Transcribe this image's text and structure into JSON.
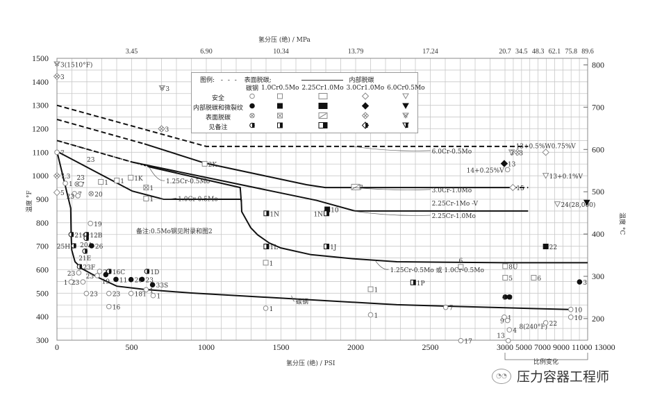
{
  "chart_data": {
    "type": "line",
    "xlabel_bottom": "氢分压 (绝) / PSI",
    "xlabel_top": "氢分压 (绝) / MPa",
    "ylabel_left": "温度 °F",
    "ylabel_right": "温度 °C",
    "x_ticks": [
      0,
      500,
      1000,
      1500,
      2000,
      2500,
      3000,
      5000,
      7000,
      9000,
      11000,
      13000
    ],
    "x_scale_note": "比例变化",
    "x_scale_change_at": 3000,
    "top_ticks": [
      {
        "psi": 500,
        "label": "3.45"
      },
      {
        "psi": 1000,
        "label": "6.90"
      },
      {
        "psi": 1500,
        "label": "10.34"
      },
      {
        "psi": 2000,
        "label": "13.79"
      },
      {
        "psi": 2500,
        "label": "17.24"
      },
      {
        "psi": 3000,
        "label": "20.7"
      },
      {
        "psi": 5000,
        "label": "34.5"
      },
      {
        "psi": 7000,
        "label": "48.3"
      },
      {
        "psi": 9000,
        "label": "62.1"
      },
      {
        "psi": 11000,
        "label": "75.8"
      },
      {
        "psi": 13000,
        "label": "89.6"
      }
    ],
    "y_ticks_left": [
      300,
      400,
      500,
      600,
      700,
      800,
      900,
      1000,
      1100,
      1200,
      1300,
      1400,
      1500
    ],
    "y_ticks_right": [
      200,
      300,
      400,
      500,
      600,
      700,
      800
    ],
    "xlim": [
      0,
      13000
    ],
    "ylim": [
      300,
      1500
    ],
    "grid": true,
    "series": [
      {
        "name": "6.0Cr-0.5Mo",
        "segments": [
          {
            "style": "dashed",
            "points": [
              [
                0,
                1300
              ],
              [
                1000,
                1125
              ],
              [
                5800,
                1125
              ]
            ]
          }
        ]
      },
      {
        "name": "3.0Cr-1.0Mo",
        "segments": [
          {
            "style": "dashed",
            "points": [
              [
                0,
                1240
              ],
              [
                585,
                1136
              ]
            ]
          },
          {
            "style": "solid",
            "points": [
              [
                585,
                1136
              ],
              [
                990,
                1054
              ],
              [
                1670,
                962
              ],
              [
                1796,
                950
              ],
              [
                3840,
                950
              ]
            ]
          },
          {
            "style": "dashed",
            "points": [
              [
                3840,
                950
              ],
              [
                5800,
                950
              ]
            ]
          }
        ]
      },
      {
        "name": "2.25Cr-1.0Mo",
        "segments": [
          {
            "style": "dashed",
            "points": [
              [
                0,
                1150
              ],
              [
                504,
                1058
              ]
            ]
          },
          {
            "style": "solid",
            "points": [
              [
                504,
                1058
              ],
              [
                1740,
                895
              ],
              [
                1996,
                850
              ],
              [
                5800,
                850
              ]
            ]
          }
        ]
      },
      {
        "name": "1.25Cr-0.5Mo",
        "segments": [
          {
            "style": "dotted",
            "points": [
              [
                0,
                1150
              ],
              [
                611,
                1039
              ]
            ]
          },
          {
            "style": "solid",
            "points": [
              [
                611,
                1039
              ],
              [
                1227,
                950
              ],
              [
                1234,
                891
              ]
            ]
          }
        ]
      },
      {
        "name": "1.0Cr-0.5Mo",
        "segments": [
          {
            "style": "solid",
            "points": [
              [
                0,
                1104
              ],
              [
                504,
                935
              ],
              [
                714,
                900
              ],
              [
                1234,
                900
              ]
            ]
          }
        ]
      },
      {
        "name": "1.25Cr-0.5Mo 或 1.0Cr-0.5Mo",
        "segments": [
          {
            "style": "solid",
            "points": [
              [
                1234,
                900
              ],
              [
                1237,
                847
              ],
              [
                1297,
                779
              ],
              [
                1343,
                749
              ],
              [
                1421,
                714
              ],
              [
                1497,
                693
              ],
              [
                1701,
                664
              ],
              [
                1996,
                646
              ],
              [
                2276,
                634
              ],
              [
                3000,
                630
              ],
              [
                13000,
                630
              ]
            ]
          }
        ]
      },
      {
        "name": "碳钢",
        "segments": [
          {
            "style": "solid",
            "points": [
              [
                0,
                1104
              ],
              [
                92,
                862
              ],
              [
                95,
                752
              ],
              [
                99,
                684
              ],
              [
                121,
                634
              ],
              [
                168,
                604
              ],
              [
                280,
                566
              ],
              [
                401,
                530
              ],
              [
                588,
                516
              ],
              [
                900,
                501
              ],
              [
                2276,
                451
              ],
              [
                3000,
                438
              ],
              [
                10800,
                431
              ]
            ]
          }
        ]
      }
    ],
    "curve_labels": [
      {
        "text": "6.0Cr-0.5Mo",
        "at": [
          2510,
          1095
        ],
        "arrow": [
          1980,
          1125
        ]
      },
      {
        "text": "3.0Cr-1.0Mo",
        "at": [
          2510,
          930
        ],
        "arrow": [
          1980,
          950
        ]
      },
      {
        "text": "2.25Cr-1Mo -V",
        "at": [
          2510,
          873
        ]
      },
      {
        "text": "2.25Cr-1.0Mo",
        "at": [
          2510,
          820
        ],
        "arrow": [
          1980,
          850
        ]
      },
      {
        "text": "1.25Cr-0.5Mo",
        "at": [
          730,
          968
        ],
        "arrow": [
          620,
          1034
        ]
      },
      {
        "text": "1.0Cr-0.5Mo",
        "at": [
          810,
          893
        ],
        "arrow": [
          690,
          903
        ]
      },
      {
        "text": "1.25Cr-0.5Mo 或 1.0Cr-0.5Mo",
        "at": [
          2230,
          590
        ],
        "arrow": [
          2130,
          640
        ]
      },
      {
        "text": "碳钢",
        "at": [
          1600,
          455
        ],
        "arrow": [
          1570,
          490
        ]
      }
    ],
    "note": "备注:0.5Mo钢见附录和图2",
    "points": [
      {
        "psi": 0,
        "F": 1475,
        "m": "tri",
        "s": "x",
        "label": "3(1510°F)"
      },
      {
        "psi": 0,
        "F": 1423,
        "m": "diamond",
        "s": "x",
        "label": "3"
      },
      {
        "psi": 704,
        "F": 1373,
        "m": "tri",
        "s": "x",
        "label": "3"
      },
      {
        "psi": 700,
        "F": 1200,
        "m": "diamond",
        "s": "x",
        "label": "3"
      },
      {
        "psi": 989,
        "F": 1051,
        "m": "square",
        "s": "open",
        "label": "2K"
      },
      {
        "psi": 494,
        "F": 992,
        "m": "square",
        "s": "open",
        "label": "1K"
      },
      {
        "psi": 294,
        "F": 974,
        "m": "square",
        "s": "open",
        "label": "1"
      },
      {
        "psi": 401,
        "F": 980,
        "m": "square",
        "s": "open",
        "label": "1"
      },
      {
        "psi": 597,
        "F": 950,
        "m": "square",
        "s": "x",
        "label": "1"
      },
      {
        "psi": 597,
        "F": 903,
        "m": "square",
        "s": "open",
        "label": "1"
      },
      {
        "psi": 0,
        "F": 1100,
        "m": "circle",
        "s": "open",
        "label": "7"
      },
      {
        "psi": 177,
        "F": 1071,
        "m": "circle",
        "s": "none",
        "label": "23"
      },
      {
        "psi": 0,
        "F": 1000,
        "m": "diamond",
        "s": "x",
        "label": "7.3"
      },
      {
        "psi": 0,
        "F": 929,
        "m": "diamond",
        "s": "open",
        "label": "5"
      },
      {
        "psi": 56,
        "F": 968,
        "m": "circle",
        "s": "open",
        "label": "1"
      },
      {
        "psi": 135,
        "F": 965,
        "m": "circle",
        "s": "x",
        "label": "7"
      },
      {
        "psi": 159,
        "F": 965,
        "m": "circle",
        "s": "open",
        "label": "23"
      },
      {
        "psi": 117,
        "F": 924,
        "m": "circle",
        "s": "open",
        "label": "7"
      },
      {
        "psi": 140,
        "F": 915,
        "m": "circle",
        "s": "open",
        "label": "23"
      },
      {
        "psi": 229,
        "F": 924,
        "m": "circle",
        "s": "x",
        "label": "20"
      },
      {
        "psi": 224,
        "F": 797,
        "m": "circle",
        "s": "open",
        "label": "19"
      },
      {
        "psi": 95,
        "F": 750,
        "m": "circle",
        "s": "half",
        "label": "21G"
      },
      {
        "psi": 197,
        "F": 750,
        "m": "circle",
        "s": "half",
        "label": "12B"
      },
      {
        "psi": 196,
        "F": 734,
        "m": "circle",
        "s": "half",
        "label": "20A"
      },
      {
        "psi": 112,
        "F": 702,
        "m": "circle",
        "s": "half",
        "label": "25H"
      },
      {
        "psi": 232,
        "F": 702,
        "m": "circle",
        "s": "filled",
        "label": "26"
      },
      {
        "psi": 187,
        "F": 679,
        "m": "circle",
        "s": "half",
        "label": "21E"
      },
      {
        "psi": 151,
        "F": 613,
        "m": "circle",
        "s": "half",
        "label": "23F"
      },
      {
        "psi": 286,
        "F": 593,
        "m": "circle",
        "s": "open",
        "label": "23"
      },
      {
        "psi": 146,
        "F": 587,
        "m": "circle",
        "s": "open",
        "label": "23"
      },
      {
        "psi": 348,
        "F": 593,
        "m": "circle",
        "s": "half",
        "label": "16C"
      },
      {
        "psi": 327,
        "F": 579,
        "m": "circle",
        "s": "filled",
        "label": "19"
      },
      {
        "psi": 395,
        "F": 559,
        "m": "circle",
        "s": "filled",
        "label": "11"
      },
      {
        "psi": 496,
        "F": 558,
        "m": "circle",
        "s": "filled",
        "label": "20"
      },
      {
        "psi": 570,
        "F": 559,
        "m": "circle",
        "s": "filled",
        "label": "23"
      },
      {
        "psi": 602,
        "F": 593,
        "m": "circle",
        "s": "half",
        "label": "1D"
      },
      {
        "psi": 640,
        "F": 536,
        "m": "circle",
        "s": "filled",
        "label": "33S"
      },
      {
        "psi": 270,
        "F": 575,
        "m": "circle",
        "s": "open",
        "label": "23"
      },
      {
        "psi": 174,
        "F": 548,
        "m": "circle",
        "s": "open",
        "label": "23"
      },
      {
        "psi": 95,
        "F": 548,
        "m": "circle",
        "s": "open",
        "label": "1"
      },
      {
        "psi": 197,
        "F": 499,
        "m": "circle",
        "s": "open",
        "label": "23"
      },
      {
        "psi": 348,
        "F": 499,
        "m": "circle",
        "s": "open",
        "label": "23"
      },
      {
        "psi": 348,
        "F": 443,
        "m": "circle",
        "s": "open",
        "label": "16"
      },
      {
        "psi": 496,
        "F": 499,
        "m": "circle",
        "s": "open",
        "label": "18T"
      },
      {
        "psi": 597,
        "F": 515,
        "m": "circle",
        "s": "open",
        "label": "1"
      },
      {
        "psi": 644,
        "F": 490,
        "m": "circle",
        "s": "open",
        "label": "1"
      },
      {
        "psi": 1402,
        "F": 840,
        "m": "square",
        "s": "half",
        "label": "1N"
      },
      {
        "psi": 1810,
        "F": 857,
        "m": "square",
        "s": "filled",
        "label": "10"
      },
      {
        "psi": 1805,
        "F": 840,
        "m": "square",
        "s": "half",
        "label": "1N"
      },
      {
        "psi": 1402,
        "F": 699,
        "m": "square",
        "s": "half",
        "label": "1L"
      },
      {
        "psi": 1805,
        "F": 699,
        "m": "square",
        "s": "half",
        "label": "1J"
      },
      {
        "psi": 1398,
        "F": 630,
        "m": "square",
        "s": "open",
        "label": "1"
      },
      {
        "psi": 1398,
        "F": 436,
        "m": "circle",
        "s": "open",
        "label": "1"
      },
      {
        "psi": 2100,
        "F": 517,
        "m": "square",
        "s": "open",
        "label": "1"
      },
      {
        "psi": 2100,
        "F": 408,
        "m": "circle",
        "s": "open",
        "label": "1"
      },
      {
        "psi": 2000,
        "F": 952,
        "m": "rect",
        "s": "slash",
        "label": "7"
      },
      {
        "psi": 2385,
        "F": 546,
        "m": "square",
        "s": "half",
        "label": "1P"
      },
      {
        "psi": 2704,
        "F": 612,
        "m": "square",
        "s": "open",
        "label": "6"
      },
      {
        "psi": 2603,
        "F": 440,
        "m": "circle",
        "s": "open",
        "label": "7"
      },
      {
        "psi": 2704,
        "F": 298,
        "m": "circle",
        "s": "open",
        "label": "17"
      },
      {
        "psi": 3025,
        "F": 615,
        "m": "square",
        "s": "open",
        "label": "8U"
      },
      {
        "psi": 3025,
        "F": 566,
        "m": "square",
        "s": "open",
        "label": "5"
      },
      {
        "psi": 6480,
        "F": 566,
        "m": "square",
        "s": "open",
        "label": "6"
      },
      {
        "psi": 7930,
        "F": 699,
        "m": "square",
        "s": "filled",
        "label": "22"
      },
      {
        "psi": 12020,
        "F": 548,
        "m": "circle",
        "s": "filled",
        "label": "3"
      },
      {
        "psi": 3025,
        "F": 484,
        "m": "circle",
        "s": "filled",
        "label": "9"
      },
      {
        "psi": 3530,
        "F": 484,
        "m": "circle",
        "s": "filled",
        "label": "4"
      },
      {
        "psi": 2995,
        "F": 398,
        "m": "circle",
        "s": "open",
        "label": "1"
      },
      {
        "psi": 3310,
        "F": 384,
        "m": "circle",
        "s": "open",
        "label": "9"
      },
      {
        "psi": 3530,
        "F": 344,
        "m": "circle",
        "s": "open",
        "label": "4"
      },
      {
        "psi": 4300,
        "F": 360,
        "m": "circle",
        "s": "none",
        "label": "8(240°F)"
      },
      {
        "psi": 3395,
        "F": 298,
        "m": "circle",
        "s": "open",
        "label": "13"
      },
      {
        "psi": 7930,
        "F": 374,
        "m": "circle",
        "s": "open",
        "label": "22"
      },
      {
        "psi": 10960,
        "F": 431,
        "m": "circle",
        "s": "open",
        "label": "10"
      },
      {
        "psi": 10960,
        "F": 398,
        "m": "circle",
        "s": "open",
        "label": "10"
      },
      {
        "psi": 3810,
        "F": 1100,
        "m": "tri",
        "s": "open",
        "label": "13"
      },
      {
        "psi": 4510,
        "F": 1100,
        "m": "diamond",
        "s": "x",
        "label": "3"
      },
      {
        "psi": 2995,
        "F": 1052,
        "m": "diamond",
        "s": "filled",
        "label": "13"
      },
      {
        "psi": 3310,
        "F": 1026,
        "m": "circle",
        "s": "open",
        "label": "14+0.25%V"
      },
      {
        "psi": 7930,
        "F": 1100,
        "m": "diamond",
        "s": "open",
        "label": "13+0.5%W0.75%V"
      },
      {
        "psi": 7930,
        "F": 1000,
        "m": "tri",
        "s": "open",
        "label": "13+0.1%V"
      },
      {
        "psi": 3950,
        "F": 950,
        "m": "diamond",
        "s": "open",
        "label": "15"
      },
      {
        "psi": 9340,
        "F": 879,
        "m": "tri",
        "s": "open",
        "label": "24(28,000)"
      },
      {
        "psi": 12900,
        "F": 886,
        "m": "tri",
        "s": "filled",
        "label": ""
      }
    ]
  },
  "legend": {
    "title": "图例:",
    "surface_label": "表面脱碳;",
    "internal_label": "内部脱碳",
    "columns": [
      "碳钢",
      "1.0Cr0.5Mo",
      "2.25Cr1.0Mo",
      "3.0Cr1.0Mo",
      "6.0Cr0.5Mo"
    ],
    "column_markers": [
      "circle",
      "square",
      "rect",
      "diamond",
      "tri"
    ],
    "rows": [
      {
        "label": "安全",
        "style": "open"
      },
      {
        "label": "内部脱碳和微裂纹",
        "style": "filled"
      },
      {
        "label": "表面脱碳",
        "style": "x"
      },
      {
        "label": "见备注",
        "style": "half"
      }
    ]
  },
  "watermark": {
    "icon": "wechat-icon",
    "text": "压力容器工程师"
  }
}
